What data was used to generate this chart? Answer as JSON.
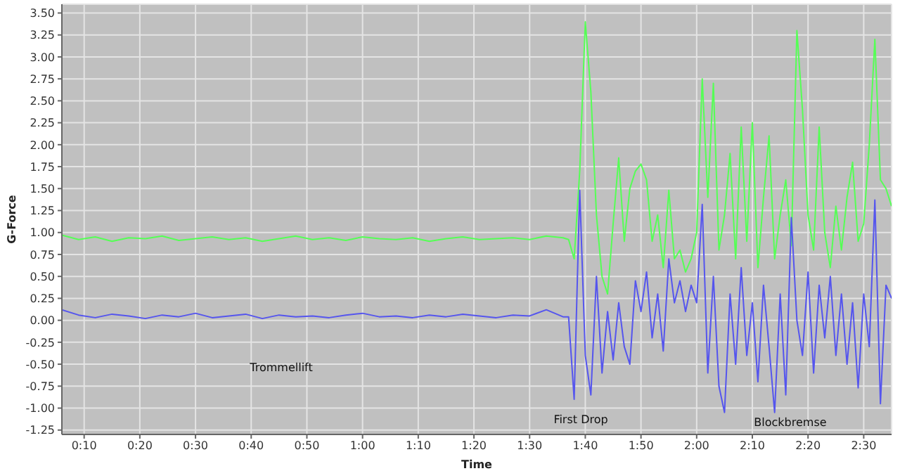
{
  "chart_data": {
    "type": "line",
    "xlabel": "Time",
    "ylabel": "G-Force",
    "grid": true,
    "marker": "none",
    "line_style": "solid",
    "x": [
      6,
      9,
      12,
      15,
      18,
      21,
      24,
      27,
      30,
      33,
      36,
      39,
      42,
      45,
      48,
      51,
      54,
      57,
      60,
      63,
      66,
      69,
      72,
      75,
      78,
      81,
      84,
      87,
      90,
      93,
      96,
      97,
      98,
      99,
      100,
      101,
      102,
      103,
      104,
      105,
      106,
      107,
      108,
      109,
      110,
      111,
      112,
      113,
      114,
      115,
      116,
      117,
      118,
      119,
      120,
      121,
      122,
      123,
      124,
      125,
      126,
      127,
      128,
      129,
      130,
      131,
      132,
      133,
      134,
      135,
      136,
      137,
      138,
      139,
      140,
      141,
      142,
      143,
      144,
      145,
      146,
      147,
      148,
      149,
      150,
      151,
      152,
      153,
      154,
      155
    ],
    "series": [
      {
        "color": "#55ff55",
        "values": [
          0.97,
          0.92,
          0.95,
          0.9,
          0.94,
          0.93,
          0.96,
          0.91,
          0.93,
          0.95,
          0.92,
          0.94,
          0.9,
          0.93,
          0.96,
          0.92,
          0.94,
          0.91,
          0.95,
          0.93,
          0.92,
          0.94,
          0.9,
          0.93,
          0.95,
          0.92,
          0.93,
          0.94,
          0.92,
          0.96,
          0.94,
          0.92,
          0.7,
          1.7,
          3.4,
          2.6,
          1.2,
          0.5,
          0.3,
          1.1,
          1.85,
          0.9,
          1.5,
          1.7,
          1.78,
          1.6,
          0.9,
          1.2,
          0.6,
          1.48,
          0.7,
          0.8,
          0.55,
          0.7,
          1.0,
          2.75,
          1.4,
          2.7,
          0.8,
          1.2,
          1.9,
          0.7,
          2.2,
          0.9,
          2.25,
          0.6,
          1.4,
          2.1,
          0.7,
          1.2,
          1.6,
          0.85,
          3.3,
          2.4,
          1.2,
          0.8,
          2.2,
          1.0,
          0.6,
          1.3,
          0.8,
          1.4,
          1.8,
          0.9,
          1.1,
          2.0,
          3.2,
          1.6,
          1.5,
          1.3
        ]
      },
      {
        "color": "#5555ee",
        "values": [
          0.12,
          0.06,
          0.03,
          0.07,
          0.05,
          0.02,
          0.06,
          0.04,
          0.08,
          0.03,
          0.05,
          0.07,
          0.02,
          0.06,
          0.04,
          0.05,
          0.03,
          0.06,
          0.08,
          0.04,
          0.05,
          0.03,
          0.06,
          0.04,
          0.07,
          0.05,
          0.03,
          0.06,
          0.05,
          0.12,
          0.04,
          0.04,
          -0.9,
          1.48,
          -0.4,
          -0.85,
          0.5,
          -0.6,
          0.1,
          -0.45,
          0.2,
          -0.3,
          -0.5,
          0.45,
          0.1,
          0.55,
          -0.2,
          0.3,
          -0.35,
          0.7,
          0.2,
          0.45,
          0.1,
          0.4,
          0.2,
          1.32,
          -0.6,
          0.5,
          -0.75,
          -1.05,
          0.3,
          -0.5,
          0.6,
          -0.4,
          0.2,
          -0.7,
          0.4,
          -0.3,
          -1.05,
          0.3,
          -0.85,
          1.17,
          0.0,
          -0.4,
          0.55,
          -0.6,
          0.4,
          -0.2,
          0.5,
          -0.4,
          0.3,
          -0.5,
          0.2,
          -0.77,
          0.3,
          -0.3,
          1.37,
          -0.95,
          0.4,
          0.25
        ]
      }
    ],
    "xlim": [
      6,
      155
    ],
    "xticks": [
      {
        "value": 10,
        "label": "0:10"
      },
      {
        "value": 20,
        "label": "0:20"
      },
      {
        "value": 30,
        "label": "0:30"
      },
      {
        "value": 40,
        "label": "0:40"
      },
      {
        "value": 50,
        "label": "0:50"
      },
      {
        "value": 60,
        "label": "1:00"
      },
      {
        "value": 70,
        "label": "1:10"
      },
      {
        "value": 80,
        "label": "1:20"
      },
      {
        "value": 90,
        "label": "1:30"
      },
      {
        "value": 100,
        "label": "1:40"
      },
      {
        "value": 110,
        "label": "1:50"
      },
      {
        "value": 120,
        "label": "2:00"
      },
      {
        "value": 130,
        "label": "2:10"
      },
      {
        "value": 140,
        "label": "2:20"
      },
      {
        "value": 150,
        "label": "2:30"
      }
    ],
    "ylim": [
      -1.3,
      3.6
    ],
    "yticks": [
      {
        "value": -1.25,
        "label": "-1.25"
      },
      {
        "value": -1,
        "label": "-1.00"
      },
      {
        "value": -0.75,
        "label": "-0.75"
      },
      {
        "value": -0.5,
        "label": "-0.50"
      },
      {
        "value": -0.25,
        "label": "-0.25"
      },
      {
        "value": 0,
        "label": "0.00"
      },
      {
        "value": 0.25,
        "label": "0.25"
      },
      {
        "value": 0.5,
        "label": "0.50"
      },
      {
        "value": 0.75,
        "label": "0.75"
      },
      {
        "value": 1,
        "label": "1.00"
      },
      {
        "value": 1.25,
        "label": "1.25"
      },
      {
        "value": 1.5,
        "label": "1.50"
      },
      {
        "value": 1.75,
        "label": "1.75"
      },
      {
        "value": 2,
        "label": "2.00"
      },
      {
        "value": 2.25,
        "label": "2.25"
      },
      {
        "value": 2.5,
        "label": "2.50"
      },
      {
        "value": 2.75,
        "label": "2.75"
      },
      {
        "value": 3,
        "label": "3.00"
      },
      {
        "value": 3.25,
        "label": "3.25"
      },
      {
        "value": 3.5,
        "label": "3.50"
      }
    ],
    "annotations": [
      "Trommellift",
      "First Drop",
      "Blockbremse"
    ]
  }
}
